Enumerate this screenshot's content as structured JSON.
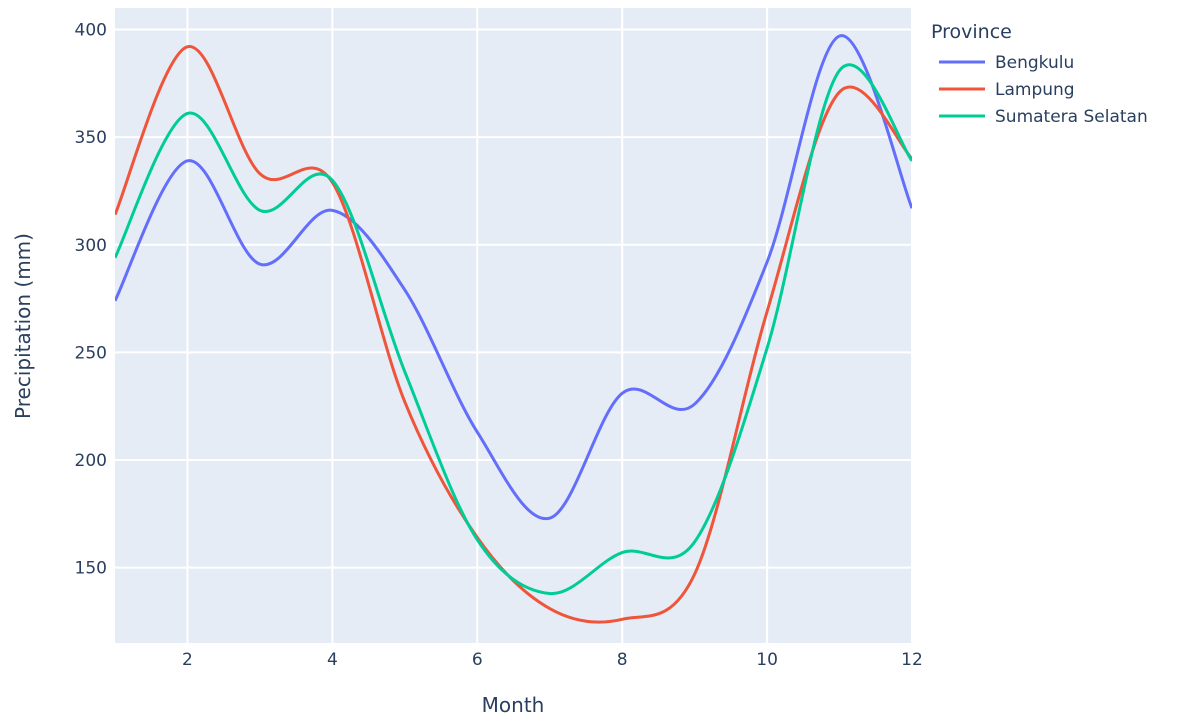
{
  "chart_data": {
    "type": "line",
    "xlabel": "Month",
    "ylabel": "Precipitation (mm)",
    "xlim": [
      1,
      12
    ],
    "ylim": [
      115,
      410
    ],
    "xticks": [
      2,
      4,
      6,
      8,
      10,
      12
    ],
    "yticks": [
      150,
      200,
      250,
      300,
      350,
      400
    ],
    "grid": true,
    "legend": {
      "title": "Province",
      "position": "top-right outside"
    },
    "x": [
      1,
      2,
      3,
      4,
      5,
      6,
      7,
      8,
      9,
      10,
      11,
      12
    ],
    "series": [
      {
        "name": "Bengkulu",
        "color": "#636efa",
        "values": [
          274,
          339,
          291,
          316,
          279,
          213,
          173,
          231,
          226,
          292,
          397,
          317
        ]
      },
      {
        "name": "Lampung",
        "color": "#ef553b",
        "values": [
          314,
          392,
          333,
          329,
          227,
          164,
          131,
          126,
          147,
          269,
          371,
          340
        ]
      },
      {
        "name": "Sumatera Selatan",
        "color": "#00cc96",
        "values": [
          294,
          361,
          316,
          330,
          241,
          163,
          138,
          157,
          162,
          252,
          381,
          339
        ]
      }
    ]
  }
}
